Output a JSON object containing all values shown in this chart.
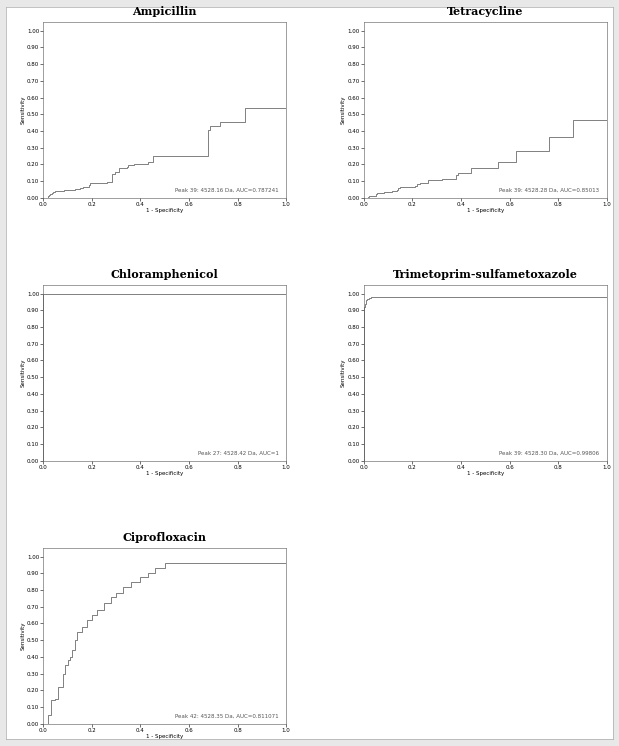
{
  "panels": [
    {
      "title": "Ampicillin",
      "annotation": "Peak 39: 4528.16 Da, AUC=0.787241",
      "auc": 0.787241
    },
    {
      "title": "Tetracycline",
      "annotation": "Peak 39: 4528.28 Da, AUC=0.85013",
      "auc": 0.85013
    },
    {
      "title": "Chloramphenicol",
      "annotation": "Peak 27: 4528.42 Da, AUC=1",
      "auc": 1.0
    },
    {
      "title": "Trimetoprim-sulfametoxazole",
      "annotation": "Peak 39: 4528.30 Da, AUC=0.99806",
      "auc": 0.99806
    },
    {
      "title": "Ciprofloxacin",
      "annotation": "Peak 42: 4528.35 Da, AUC=0.811071",
      "auc": 0.811071
    }
  ],
  "xlabel": "1 - Specificity",
  "ylabel": "Sensitivity",
  "line_color": "#808080",
  "line_width": 0.7,
  "title_fontsize": 8,
  "axis_label_fontsize": 4,
  "tick_fontsize": 4,
  "annotation_fontsize": 4,
  "background_color": "#ffffff",
  "fig_background": "#e8e8e8"
}
